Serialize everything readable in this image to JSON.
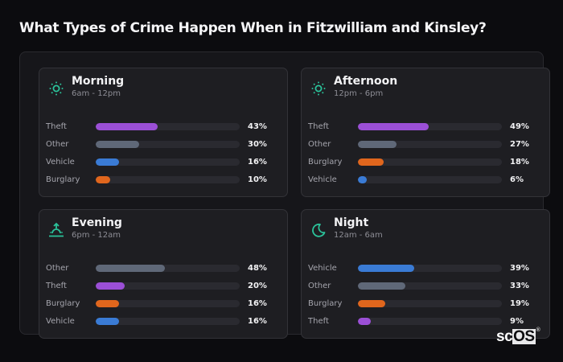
{
  "title": "What Types of Crime Happen When in Fitzwilliam and Kinsley?",
  "colors": {
    "Theft": "#9b4fd6",
    "Other": "#5f6878",
    "Vehicle": "#3a7bd5",
    "Burglary": "#e0661d",
    "accent": "#2bc29a"
  },
  "cards": [
    {
      "name": "Morning",
      "range": "6am - 12pm",
      "icon": "sun-icon",
      "rows": [
        {
          "label": "Theft",
          "value": 43,
          "pct": "43%"
        },
        {
          "label": "Other",
          "value": 30,
          "pct": "30%"
        },
        {
          "label": "Vehicle",
          "value": 16,
          "pct": "16%"
        },
        {
          "label": "Burglary",
          "value": 10,
          "pct": "10%"
        }
      ]
    },
    {
      "name": "Afternoon",
      "range": "12pm - 6pm",
      "icon": "sun-icon",
      "rows": [
        {
          "label": "Theft",
          "value": 49,
          "pct": "49%"
        },
        {
          "label": "Other",
          "value": 27,
          "pct": "27%"
        },
        {
          "label": "Burglary",
          "value": 18,
          "pct": "18%"
        },
        {
          "label": "Vehicle",
          "value": 6,
          "pct": "6%"
        }
      ]
    },
    {
      "name": "Evening",
      "range": "6pm - 12am",
      "icon": "sunset-icon",
      "rows": [
        {
          "label": "Other",
          "value": 48,
          "pct": "48%"
        },
        {
          "label": "Theft",
          "value": 20,
          "pct": "20%"
        },
        {
          "label": "Burglary",
          "value": 16,
          "pct": "16%"
        },
        {
          "label": "Vehicle",
          "value": 16,
          "pct": "16%"
        }
      ]
    },
    {
      "name": "Night",
      "range": "12am - 6am",
      "icon": "moon-icon",
      "rows": [
        {
          "label": "Vehicle",
          "value": 39,
          "pct": "39%"
        },
        {
          "label": "Other",
          "value": 33,
          "pct": "33%"
        },
        {
          "label": "Burglary",
          "value": 19,
          "pct": "19%"
        },
        {
          "label": "Theft",
          "value": 9,
          "pct": "9%"
        }
      ]
    }
  ],
  "logo": {
    "sc": "sc",
    "os": "OS",
    "reg": "®"
  },
  "chart_data": {
    "type": "bar",
    "title": "What Types of Crime Happen When in Fitzwilliam and Kinsley?",
    "orientation": "horizontal",
    "panels": [
      {
        "title": "Morning",
        "subtitle": "6am - 12pm",
        "categories": [
          "Theft",
          "Other",
          "Vehicle",
          "Burglary"
        ],
        "values": [
          43,
          30,
          16,
          10
        ]
      },
      {
        "title": "Afternoon",
        "subtitle": "12pm - 6pm",
        "categories": [
          "Theft",
          "Other",
          "Burglary",
          "Vehicle"
        ],
        "values": [
          49,
          27,
          18,
          6
        ]
      },
      {
        "title": "Evening",
        "subtitle": "6pm - 12am",
        "categories": [
          "Other",
          "Theft",
          "Burglary",
          "Vehicle"
        ],
        "values": [
          48,
          20,
          16,
          16
        ]
      },
      {
        "title": "Night",
        "subtitle": "12am - 6am",
        "categories": [
          "Vehicle",
          "Other",
          "Burglary",
          "Theft"
        ],
        "values": [
          39,
          33,
          19,
          9
        ]
      }
    ],
    "unit": "%",
    "xlim": [
      0,
      100
    ],
    "grid": false,
    "legend": "none (category colors: Theft purple, Other gray, Vehicle blue, Burglary orange)"
  }
}
